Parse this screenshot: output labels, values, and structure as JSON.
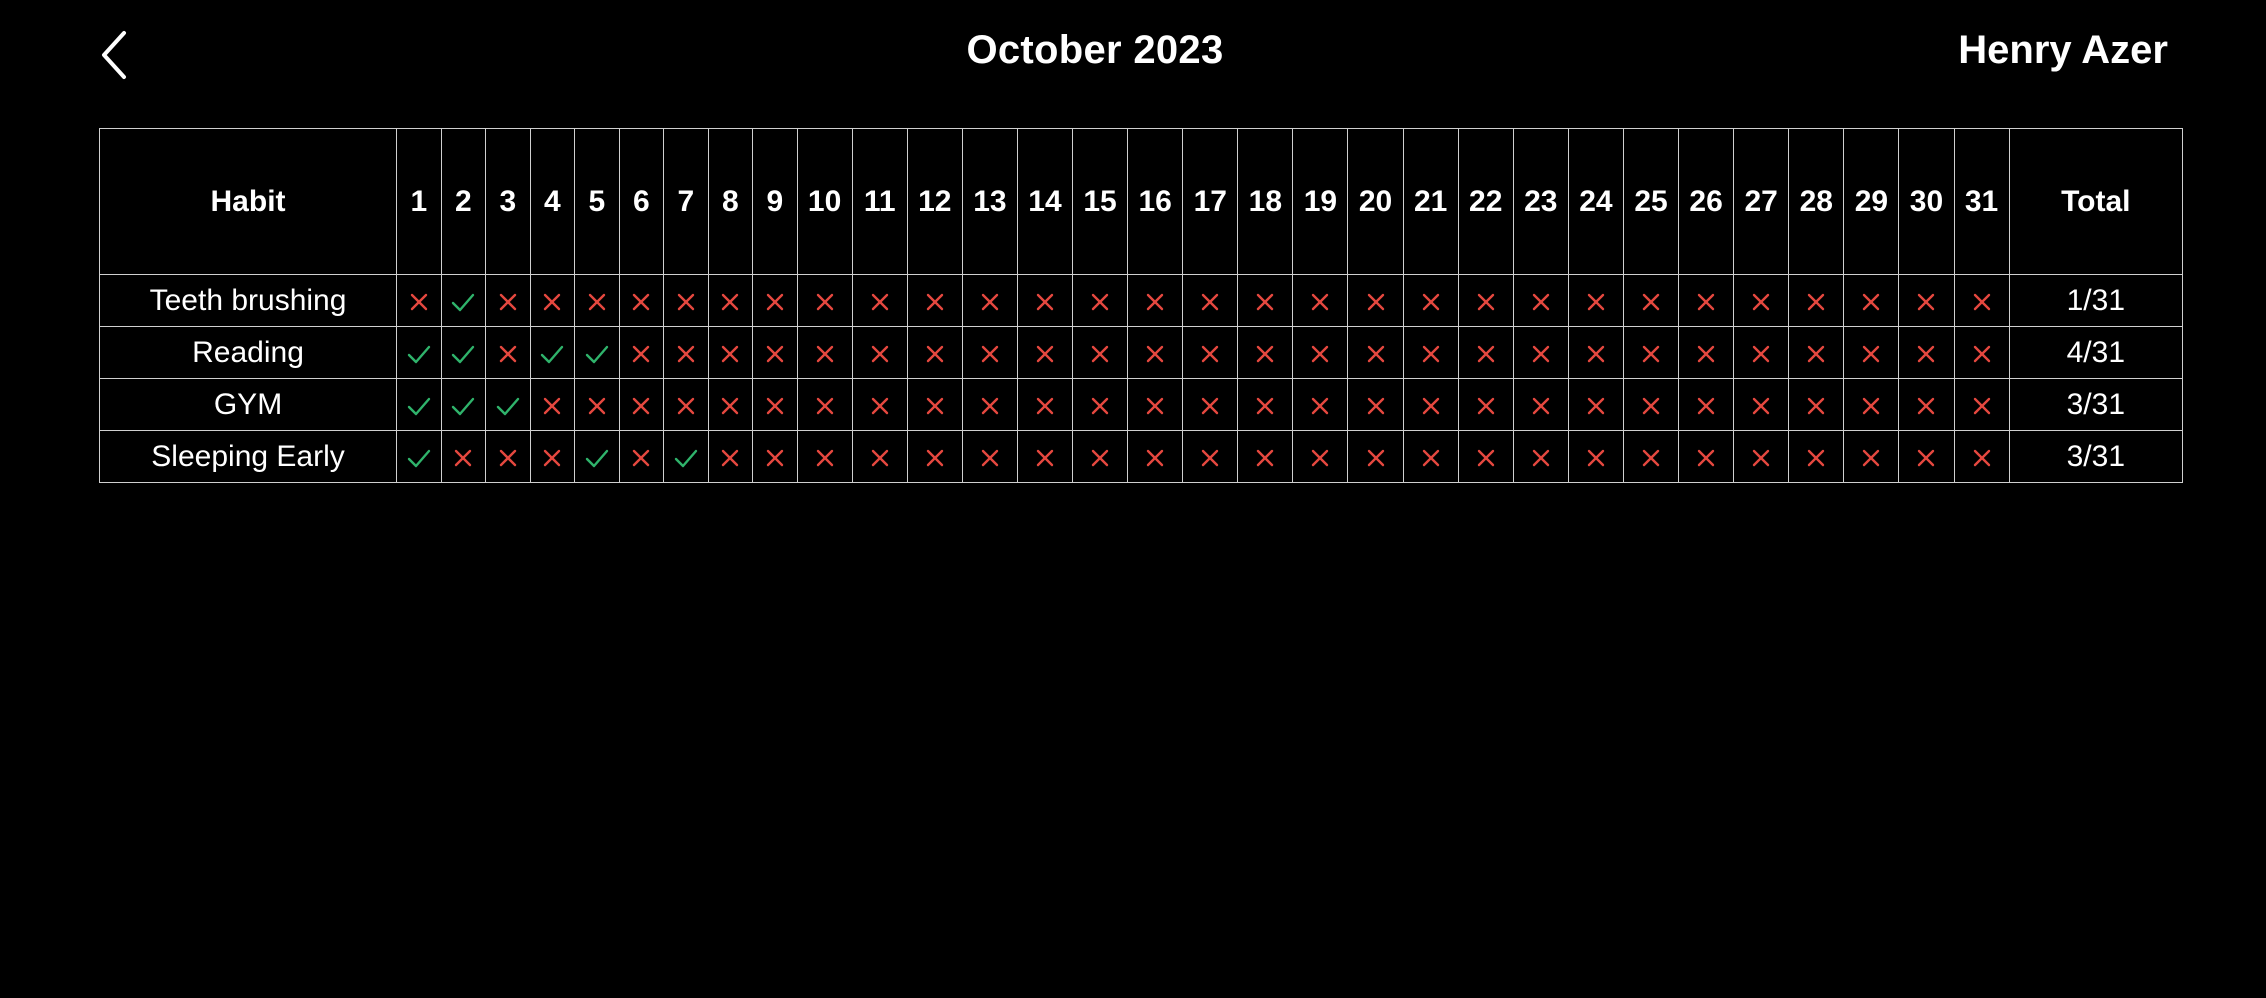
{
  "header": {
    "back_icon": "chevron-left-icon",
    "title": "October 2023",
    "user_name": "Henry Azer"
  },
  "table": {
    "habit_header": "Habit",
    "total_header": "Total",
    "days": [
      "1",
      "2",
      "3",
      "4",
      "5",
      "6",
      "7",
      "8",
      "9",
      "10",
      "11",
      "12",
      "13",
      "14",
      "15",
      "16",
      "17",
      "18",
      "19",
      "20",
      "21",
      "22",
      "23",
      "24",
      "25",
      "26",
      "27",
      "28",
      "29",
      "30",
      "31"
    ],
    "rows": [
      {
        "habit": "Teeth brushing",
        "done": [
          false,
          true,
          false,
          false,
          false,
          false,
          false,
          false,
          false,
          false,
          false,
          false,
          false,
          false,
          false,
          false,
          false,
          false,
          false,
          false,
          false,
          false,
          false,
          false,
          false,
          false,
          false,
          false,
          false,
          false,
          false
        ],
        "total": "1/31"
      },
      {
        "habit": "Reading",
        "done": [
          true,
          true,
          false,
          true,
          true,
          false,
          false,
          false,
          false,
          false,
          false,
          false,
          false,
          false,
          false,
          false,
          false,
          false,
          false,
          false,
          false,
          false,
          false,
          false,
          false,
          false,
          false,
          false,
          false,
          false,
          false
        ],
        "total": "4/31"
      },
      {
        "habit": "GYM",
        "done": [
          true,
          true,
          true,
          false,
          false,
          false,
          false,
          false,
          false,
          false,
          false,
          false,
          false,
          false,
          false,
          false,
          false,
          false,
          false,
          false,
          false,
          false,
          false,
          false,
          false,
          false,
          false,
          false,
          false,
          false,
          false
        ],
        "total": "3/31"
      },
      {
        "habit": "Sleeping Early",
        "done": [
          true,
          false,
          false,
          false,
          true,
          false,
          true,
          false,
          false,
          false,
          false,
          false,
          false,
          false,
          false,
          false,
          false,
          false,
          false,
          false,
          false,
          false,
          false,
          false,
          false,
          false,
          false,
          false,
          false,
          false,
          false
        ],
        "total": "3/31"
      }
    ]
  },
  "icons": {
    "done": "check-icon",
    "missed": "cross-icon"
  },
  "colors": {
    "background": "#000000",
    "text": "#ffffff",
    "grid": "#d0d0d0",
    "done": "#2fb36b",
    "missed": "#e5483f"
  }
}
